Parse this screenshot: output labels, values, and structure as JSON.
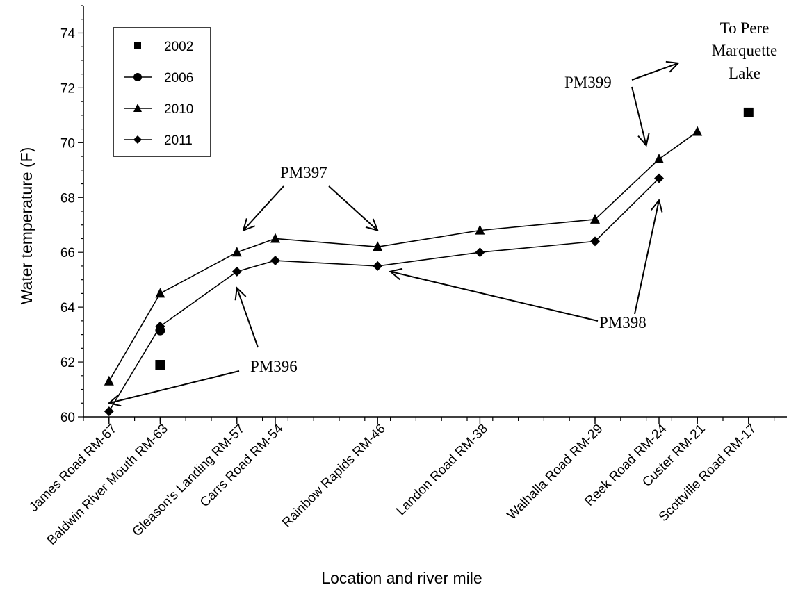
{
  "chart_data": {
    "type": "line",
    "xlabel": "Location and river mile",
    "ylabel": "Water temperature (F)",
    "ylim": [
      60,
      75
    ],
    "yticks": [
      60,
      62,
      64,
      66,
      68,
      70,
      72,
      74
    ],
    "xlim": [
      -69,
      -14
    ],
    "x_minor_step": 2,
    "x_direction": "river mile decreasing to the right",
    "grid": false,
    "legend_position": "top-left",
    "locations": [
      {
        "label": "James Road RM-67",
        "rm": -67
      },
      {
        "label": "Baldwin River Mouth RM-63",
        "rm": -63
      },
      {
        "label": "Gleason's Landing RM-57",
        "rm": -57
      },
      {
        "label": "Carrs Road RM-54",
        "rm": -54
      },
      {
        "label": "Rainbow Rapids RM-46",
        "rm": -46
      },
      {
        "label": "Landon Road RM-38",
        "rm": -38
      },
      {
        "label": "Walhalla Road RM-29",
        "rm": -29
      },
      {
        "label": "Reek Road RM-24",
        "rm": -24
      },
      {
        "label": "Custer RM-21",
        "rm": -21
      },
      {
        "label": "Scottville Road RM-17",
        "rm": -17
      }
    ],
    "series": [
      {
        "name": "2002",
        "marker": "square",
        "line": false,
        "points": [
          {
            "rm": -63,
            "y": 61.9
          },
          {
            "rm": -17,
            "y": 71.1
          }
        ]
      },
      {
        "name": "2006",
        "marker": "circle",
        "line": true,
        "points": [
          {
            "rm": -63,
            "y": 63.15
          }
        ]
      },
      {
        "name": "2010",
        "marker": "triangle",
        "line": true,
        "points": [
          {
            "rm": -67,
            "y": 61.3
          },
          {
            "rm": -63,
            "y": 64.5
          },
          {
            "rm": -57,
            "y": 66.0
          },
          {
            "rm": -54,
            "y": 66.5
          },
          {
            "rm": -46,
            "y": 66.2
          },
          {
            "rm": -38,
            "y": 66.8
          },
          {
            "rm": -29,
            "y": 67.2
          },
          {
            "rm": -24,
            "y": 69.4
          },
          {
            "rm": -21,
            "y": 70.4
          }
        ]
      },
      {
        "name": "2011",
        "marker": "diamond",
        "line": true,
        "points": [
          {
            "rm": -67,
            "y": 60.2
          },
          {
            "rm": -63,
            "y": 63.3
          },
          {
            "rm": -57,
            "y": 65.3
          },
          {
            "rm": -54,
            "y": 65.7
          },
          {
            "rm": -46,
            "y": 65.5
          },
          {
            "rm": -38,
            "y": 66.0
          },
          {
            "rm": -29,
            "y": 66.4
          },
          {
            "rm": -24,
            "y": 68.7
          }
        ]
      }
    ],
    "annotations": [
      {
        "text": "PM396",
        "targets": [
          {
            "rm": -67,
            "y": 60.5
          },
          {
            "rm": -57,
            "y": 64.7
          }
        ]
      },
      {
        "text": "PM397",
        "targets": [
          {
            "rm": -56.5,
            "y": 66.8
          },
          {
            "rm": -46,
            "y": 66.8
          }
        ]
      },
      {
        "text": "PM398",
        "targets": [
          {
            "rm": -45,
            "y": 65.3
          },
          {
            "rm": -24,
            "y": 67.9
          }
        ]
      },
      {
        "text": "PM399",
        "targets": [
          {
            "rm": -25,
            "y": 69.9
          },
          {
            "rm": -22.5,
            "y": 72.9
          }
        ]
      },
      {
        "text": "To Pere Marquette Lake",
        "lines": [
          "To Pere",
          "Marquette",
          "Lake"
        ]
      }
    ]
  }
}
